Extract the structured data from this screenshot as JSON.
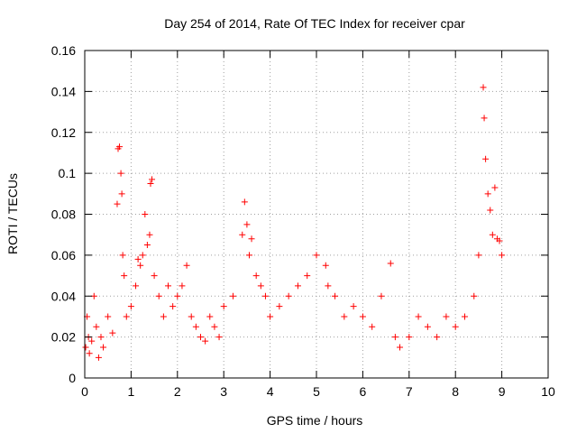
{
  "chart_data": {
    "type": "scatter",
    "title": "Day 254 of 2014, Rate Of TEC Index for receiver cpar",
    "xlabel": "GPS time / hours",
    "ylabel": "ROTI / TECUs",
    "xlim": [
      0,
      10
    ],
    "ylim": [
      0,
      0.16
    ],
    "xticks": [
      0,
      1,
      2,
      3,
      4,
      5,
      6,
      7,
      8,
      9,
      10
    ],
    "yticks": [
      0,
      0.02,
      0.04,
      0.06,
      0.08,
      0.1,
      0.12,
      0.14,
      0.16
    ],
    "ytick_labels": [
      "0",
      "0.02",
      "0.04",
      "0.06",
      "0.08",
      "0.1",
      "0.12",
      "0.14",
      "0.16"
    ],
    "grid": true,
    "marker": "plus",
    "color": "#ff0000",
    "series": [
      {
        "name": "ROTI",
        "x": [
          0.02,
          0.05,
          0.08,
          0.1,
          0.15,
          0.2,
          0.25,
          0.3,
          0.35,
          0.4,
          0.5,
          0.6,
          0.7,
          0.72,
          0.75,
          0.78,
          0.8,
          0.82,
          0.85,
          0.9,
          1.0,
          1.1,
          1.15,
          1.2,
          1.25,
          1.3,
          1.35,
          1.4,
          1.42,
          1.45,
          1.5,
          1.6,
          1.7,
          1.8,
          1.9,
          2.0,
          2.1,
          2.2,
          2.3,
          2.4,
          2.5,
          2.6,
          2.7,
          2.8,
          2.9,
          3.0,
          3.2,
          3.4,
          3.45,
          3.5,
          3.55,
          3.6,
          3.7,
          3.8,
          3.9,
          4.0,
          4.2,
          4.4,
          4.6,
          4.8,
          5.0,
          5.2,
          5.25,
          5.4,
          5.6,
          5.8,
          6.0,
          6.2,
          6.4,
          6.6,
          6.7,
          6.8,
          7.0,
          7.2,
          7.4,
          7.6,
          7.8,
          8.0,
          8.2,
          8.4,
          8.5,
          8.6,
          8.62,
          8.65,
          8.7,
          8.75,
          8.8,
          8.85,
          8.9,
          8.95,
          9.0
        ],
        "y": [
          0.015,
          0.03,
          0.02,
          0.012,
          0.018,
          0.04,
          0.025,
          0.01,
          0.02,
          0.015,
          0.03,
          0.022,
          0.085,
          0.112,
          0.113,
          0.1,
          0.09,
          0.06,
          0.05,
          0.03,
          0.035,
          0.045,
          0.058,
          0.055,
          0.06,
          0.08,
          0.065,
          0.07,
          0.095,
          0.097,
          0.05,
          0.04,
          0.03,
          0.045,
          0.035,
          0.04,
          0.045,
          0.055,
          0.03,
          0.025,
          0.02,
          0.018,
          0.03,
          0.025,
          0.02,
          0.035,
          0.04,
          0.07,
          0.086,
          0.075,
          0.06,
          0.068,
          0.05,
          0.045,
          0.04,
          0.03,
          0.035,
          0.04,
          0.045,
          0.05,
          0.06,
          0.055,
          0.045,
          0.04,
          0.03,
          0.035,
          0.03,
          0.025,
          0.04,
          0.056,
          0.02,
          0.015,
          0.02,
          0.03,
          0.025,
          0.02,
          0.03,
          0.025,
          0.03,
          0.04,
          0.06,
          0.142,
          0.127,
          0.107,
          0.09,
          0.082,
          0.07,
          0.093,
          0.068,
          0.067,
          0.06
        ]
      }
    ]
  }
}
